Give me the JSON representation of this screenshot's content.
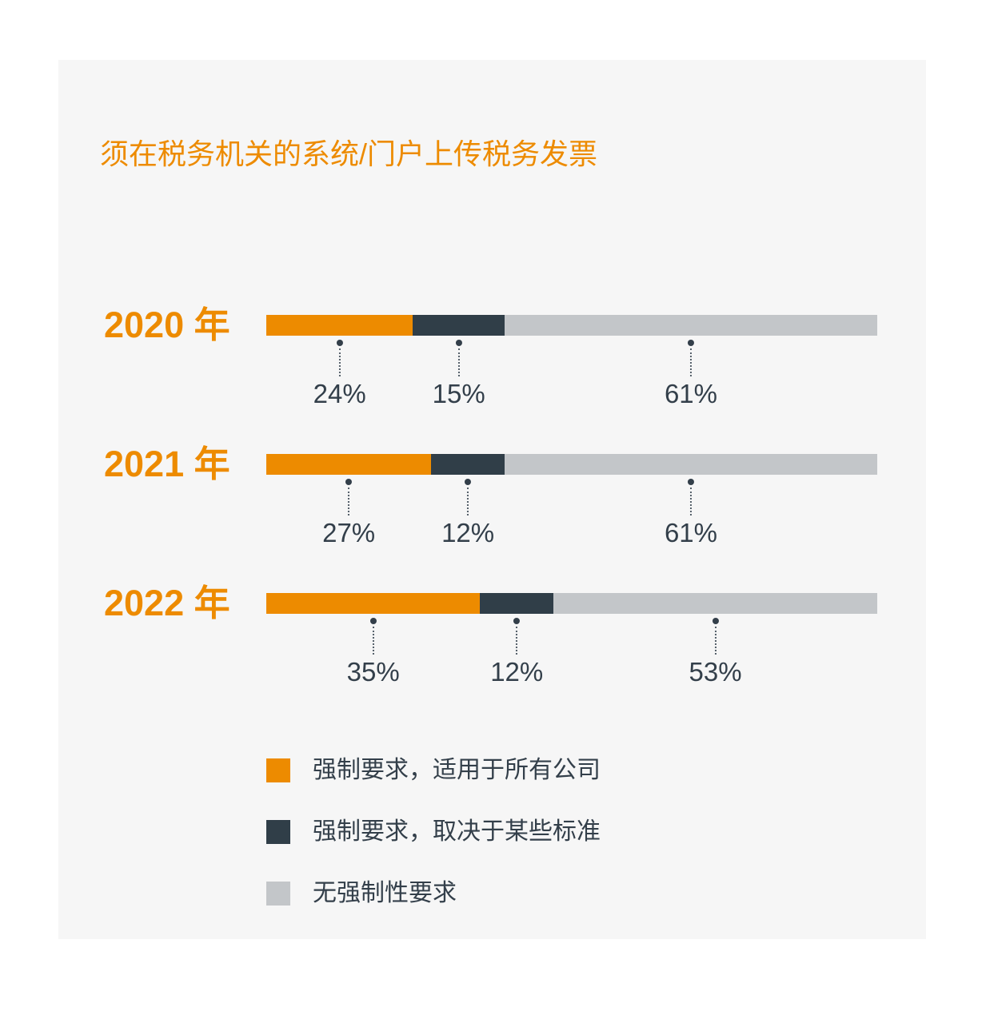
{
  "page": {
    "background": "#ffffff",
    "card_background": "#F6F6F6"
  },
  "colors": {
    "accent_orange": "#ED8B00",
    "dark_navy": "#303E48",
    "light_gray": "#C3C6C9",
    "text_dark": "#333F4A"
  },
  "chart_data": {
    "type": "bar",
    "stacked": true,
    "orientation": "horizontal",
    "title": "须在税务机关的系统/门户上传税务发票",
    "categories": [
      "2020 年",
      "2021 年",
      "2022 年"
    ],
    "series": [
      {
        "name": "强制要求，适用于所有公司",
        "color": "#ED8B00",
        "values": [
          24,
          27,
          35
        ]
      },
      {
        "name": "强制要求，取决于某些标准",
        "color": "#303E48",
        "values": [
          15,
          12,
          12
        ]
      },
      {
        "name": "无强制性要求",
        "color": "#C3C6C9",
        "values": [
          61,
          61,
          53
        ]
      }
    ],
    "value_labels": [
      [
        "24%",
        "15%",
        "61%"
      ],
      [
        "27%",
        "12%",
        "61%"
      ],
      [
        "35%",
        "12%",
        "53%"
      ]
    ],
    "value_suffix": "%",
    "xlim": [
      0,
      100
    ],
    "grid": false,
    "legend_position": "bottom-left"
  }
}
